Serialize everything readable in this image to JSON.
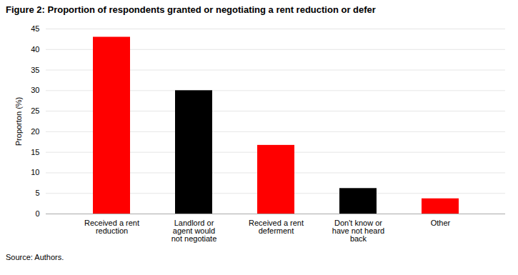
{
  "chart_data": {
    "type": "bar",
    "title": "Figure 2: Proportion of respondents granted or negotiating a rent reduction or defer",
    "categories": [
      "Received a rent\nreduction",
      "Landlord or\nagent would\nnot negotiate",
      "Received a rent\ndeferment",
      "Don't know or\nhave not heard\nback",
      "Other"
    ],
    "values": [
      43,
      30,
      16.7,
      6.2,
      3.7
    ],
    "colors": [
      "#ff0000",
      "#000000",
      "#ff0000",
      "#000000",
      "#ff0000"
    ],
    "ylabel": "Proporton (%)",
    "ylim": [
      0,
      45
    ],
    "yticks": [
      0,
      5,
      10,
      15,
      20,
      25,
      30,
      35,
      40,
      45
    ],
    "grid": true,
    "caption": "Source: Authors."
  }
}
